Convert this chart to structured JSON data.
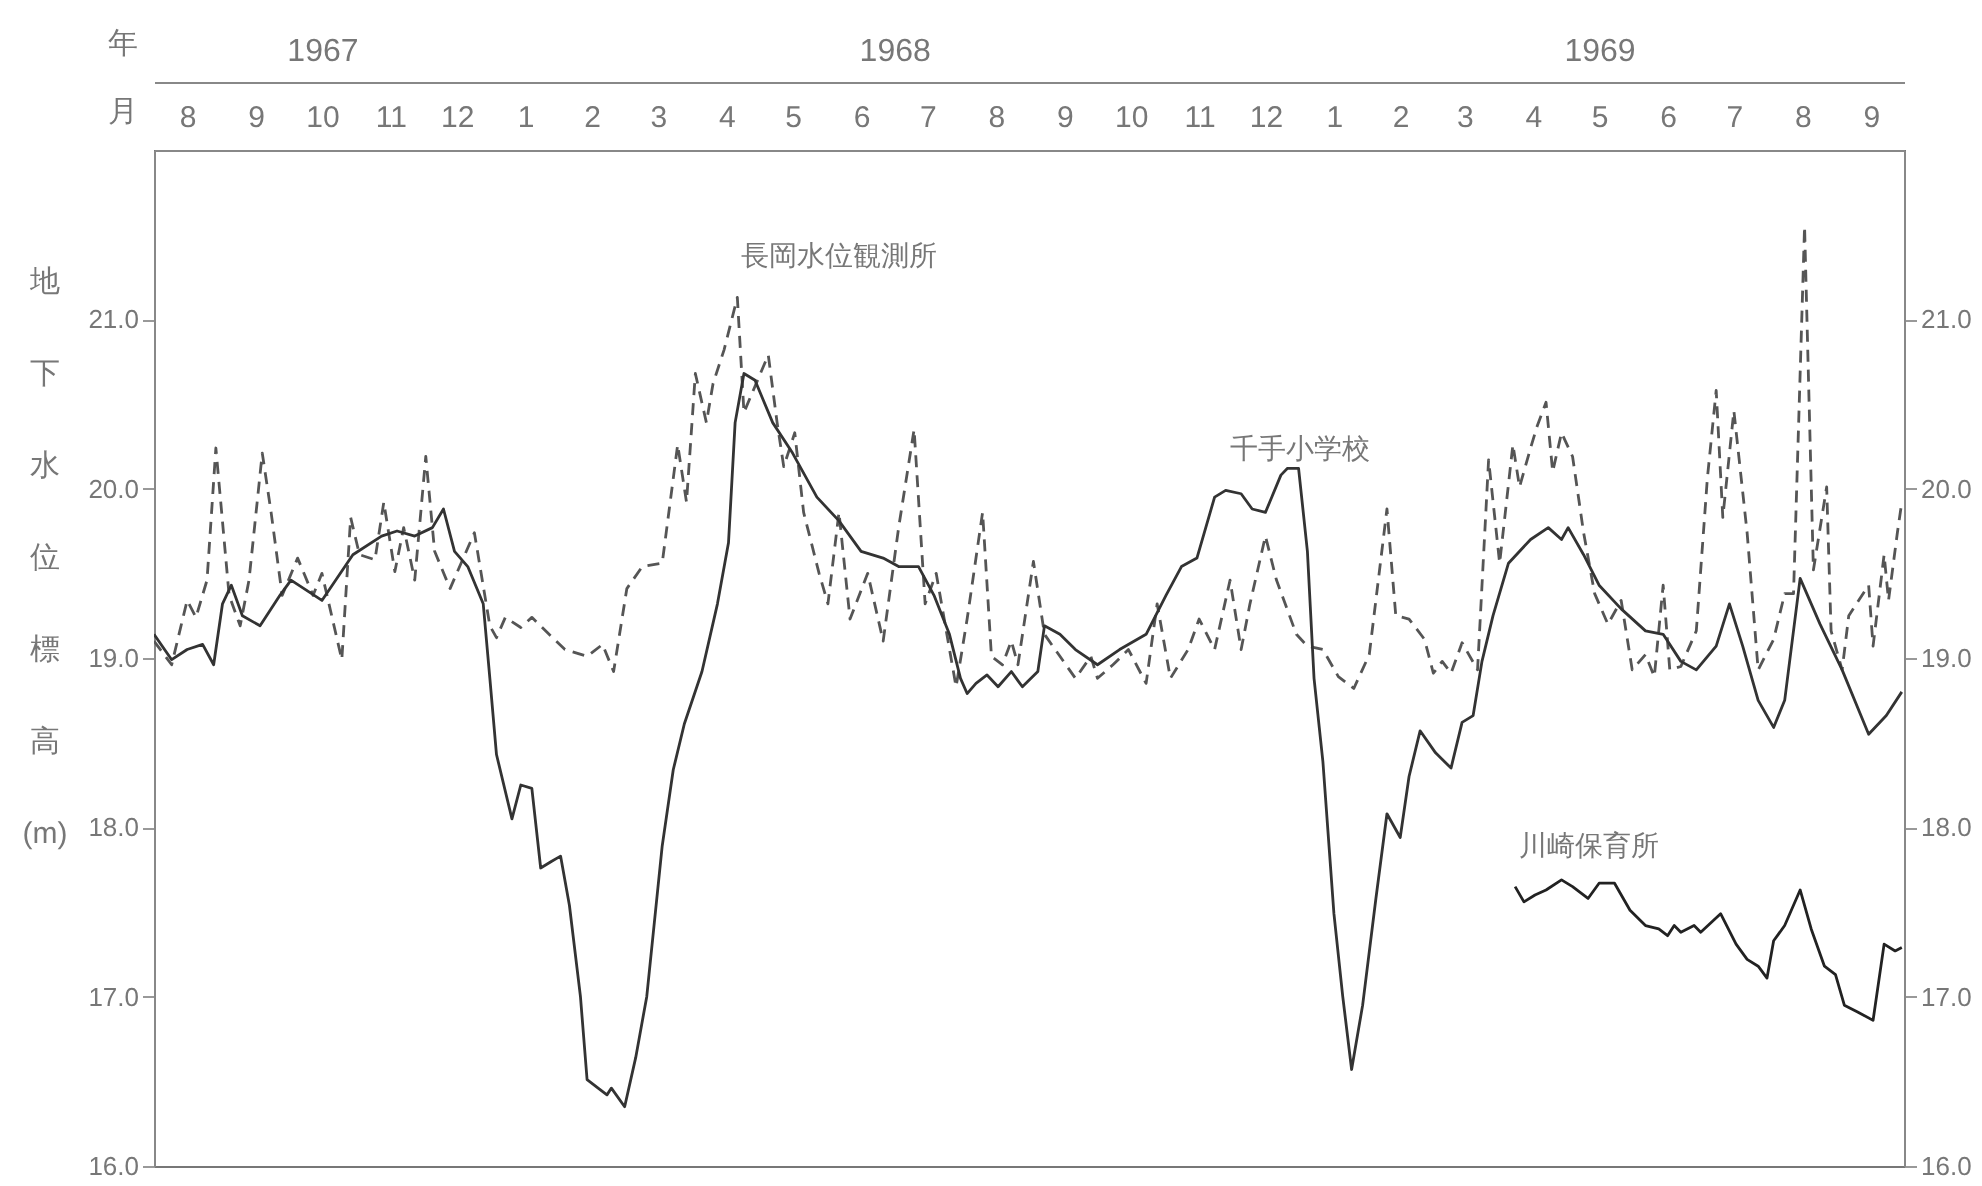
{
  "chart_data": {
    "type": "line",
    "xlabel": "月",
    "x2label": "年",
    "ylabel": "地下水位標高 (m)",
    "xlim": [
      "1967-08-01",
      "1969-10-01"
    ],
    "x2lim": [
      "1967-08-01",
      "1969-10-01"
    ],
    "xticks": [
      {
        "value": "1967-08-16",
        "label": "8"
      },
      {
        "value": "1967-09-16",
        "label": "9"
      },
      {
        "value": "1967-10-16",
        "label": "10"
      },
      {
        "value": "1967-11-16",
        "label": "11"
      },
      {
        "value": "1967-12-16",
        "label": "12"
      },
      {
        "value": "1968-01-16",
        "label": "1"
      },
      {
        "value": "1968-02-15",
        "label": "2"
      },
      {
        "value": "1968-03-16",
        "label": "3"
      },
      {
        "value": "1968-04-16",
        "label": "4"
      },
      {
        "value": "1968-05-16",
        "label": "5"
      },
      {
        "value": "1968-06-16",
        "label": "6"
      },
      {
        "value": "1968-07-16",
        "label": "7"
      },
      {
        "value": "1968-08-16",
        "label": "8"
      },
      {
        "value": "1968-09-16",
        "label": "9"
      },
      {
        "value": "1968-10-16",
        "label": "10"
      },
      {
        "value": "1968-11-16",
        "label": "11"
      },
      {
        "value": "1968-12-16",
        "label": "12"
      },
      {
        "value": "1969-01-16",
        "label": "1"
      },
      {
        "value": "1969-02-15",
        "label": "2"
      },
      {
        "value": "1969-03-16",
        "label": "3"
      },
      {
        "value": "1969-04-16",
        "label": "4"
      },
      {
        "value": "1969-05-16",
        "label": "5"
      },
      {
        "value": "1969-06-16",
        "label": "6"
      },
      {
        "value": "1969-07-16",
        "label": "7"
      },
      {
        "value": "1969-08-16",
        "label": "8"
      },
      {
        "value": "1969-09-16",
        "label": "9"
      }
    ],
    "x2ticks": [
      {
        "value": "1967-10-16",
        "label": "1967"
      },
      {
        "value": "1968-07-01",
        "label": "1968"
      },
      {
        "value": "1969-05-16",
        "label": "1969"
      }
    ],
    "ylim": [
      16,
      22
    ],
    "yticks": [
      {
        "value": 16,
        "label": "16.0"
      },
      {
        "value": 17,
        "label": "17.0"
      },
      {
        "value": 18,
        "label": "18.0"
      },
      {
        "value": 19,
        "label": "19.0"
      },
      {
        "value": 20,
        "label": "20.0"
      },
      {
        "value": 21,
        "label": "21.0"
      }
    ],
    "y2lim": [
      16,
      22
    ],
    "y2ticks": [
      {
        "value": 16,
        "label": "16.0"
      },
      {
        "value": 17,
        "label": "17.0"
      },
      {
        "value": 18,
        "label": "18.0"
      },
      {
        "value": 19,
        "label": "19.0"
      },
      {
        "value": 20,
        "label": "20.0"
      },
      {
        "value": 21,
        "label": "21.0"
      }
    ],
    "annotations": [
      {
        "text": "長岡水位観測所",
        "x": "1968-04-21",
        "y": 21.13
      },
      {
        "text": "千手小学校",
        "x": "1968-11-28",
        "y": 19.99
      },
      {
        "text": "川崎保育所",
        "x": "1969-04-08",
        "y": 17.65
      }
    ],
    "series": [
      {
        "color": "#555555",
        "line_style": "dashed",
        "x": [
          "1967-08-01",
          "1967-08-09",
          "1967-08-16",
          "1967-08-20",
          "1967-08-25",
          "1967-08-29",
          "1967-09-04",
          "1967-09-09",
          "1967-09-13",
          "1967-09-19",
          "1967-09-23",
          "1967-09-28",
          "1967-10-05",
          "1967-10-12",
          "1967-10-16",
          "1967-10-25",
          "1967-10-29",
          "1967-11-02",
          "1967-11-09",
          "1967-11-13",
          "1967-11-18",
          "1967-11-22",
          "1967-11-27",
          "1967-12-02",
          "1967-12-06",
          "1967-12-13",
          "1967-12-24",
          "1967-12-31",
          "1968-01-03",
          "1968-01-07",
          "1968-01-14",
          "1968-01-19",
          "1968-01-26",
          "1968-02-03",
          "1968-02-13",
          "1968-02-20",
          "1968-02-25",
          "1968-03-02",
          "1968-03-09",
          "1968-03-18",
          "1968-03-25",
          "1968-03-29",
          "1968-04-02",
          "1968-04-07",
          "1968-04-10",
          "1968-04-15",
          "1968-04-21",
          "1968-04-24",
          "1968-05-05",
          "1968-05-09",
          "1968-05-12",
          "1968-05-17",
          "1968-05-21",
          "1968-05-28",
          "1968-06-01",
          "1968-06-06",
          "1968-06-11",
          "1968-06-19",
          "1968-06-26",
          "1968-07-03",
          "1968-07-10",
          "1968-07-15",
          "1968-07-20",
          "1968-07-29",
          "1968-08-03",
          "1968-08-10",
          "1968-08-14",
          "1968-08-19",
          "1968-08-23",
          "1968-08-26",
          "1968-09-02",
          "1968-09-07",
          "1968-09-14",
          "1968-09-21",
          "1968-09-28",
          "1968-10-01",
          "1968-10-08",
          "1968-10-15",
          "1968-10-23",
          "1968-10-28",
          "1968-11-03",
          "1968-11-11",
          "1968-11-16",
          "1968-11-23",
          "1968-11-30",
          "1968-12-05",
          "1968-12-09",
          "1968-12-16",
          "1968-12-21",
          "1968-12-30",
          "1969-01-04",
          "1969-01-11",
          "1969-01-18",
          "1969-01-25",
          "1969-02-01",
          "1969-02-09",
          "1969-02-13",
          "1969-02-19",
          "1969-02-26",
          "1969-03-02",
          "1969-03-06",
          "1969-03-10",
          "1969-03-15",
          "1969-03-22",
          "1969-03-27",
          "1969-04-01",
          "1969-04-07",
          "1969-04-10",
          "1969-04-15",
          "1969-04-18",
          "1969-04-22",
          "1969-04-25",
          "1969-04-29",
          "1969-05-04",
          "1969-05-09",
          "1969-05-14",
          "1969-05-20",
          "1969-05-26",
          "1969-05-31",
          "1969-06-06",
          "1969-06-10",
          "1969-06-14",
          "1969-06-17",
          "1969-06-22",
          "1969-06-29",
          "1969-07-04",
          "1969-07-08",
          "1969-07-11",
          "1969-07-16",
          "1969-07-22",
          "1969-07-27",
          "1969-08-03",
          "1969-08-08",
          "1969-08-12",
          "1969-08-17",
          "1969-08-21",
          "1969-08-27",
          "1969-08-29",
          "1969-09-03",
          "1969-09-06",
          "1969-09-15",
          "1969-09-17",
          "1969-09-22",
          "1969-09-24",
          "1969-09-28",
          "1969-09-30"
        ],
        "values": [
          19.1,
          18.96,
          19.34,
          19.24,
          19.46,
          20.24,
          19.37,
          19.19,
          19.46,
          20.21,
          19.86,
          19.37,
          19.59,
          19.37,
          19.5,
          18.99,
          19.83,
          19.61,
          19.58,
          19.92,
          19.51,
          19.77,
          19.46,
          20.19,
          19.63,
          19.41,
          19.74,
          19.19,
          19.12,
          19.24,
          19.18,
          19.24,
          19.15,
          19.05,
          19.01,
          19.08,
          18.92,
          19.41,
          19.54,
          19.56,
          20.26,
          19.92,
          20.68,
          20.39,
          20.62,
          20.82,
          21.13,
          20.45,
          20.79,
          20.39,
          20.13,
          20.33,
          19.86,
          19.5,
          19.32,
          19.86,
          19.23,
          19.5,
          19.1,
          19.77,
          20.35,
          19.32,
          19.5,
          18.83,
          19.23,
          19.86,
          19.01,
          18.96,
          19.1,
          18.96,
          19.57,
          19.14,
          19.01,
          18.88,
          19.01,
          18.88,
          18.96,
          19.05,
          18.85,
          19.32,
          18.88,
          19.05,
          19.23,
          19.05,
          19.46,
          19.05,
          19.32,
          19.72,
          19.46,
          19.14,
          19.07,
          19.05,
          18.89,
          18.82,
          19.02,
          19.88,
          19.25,
          19.23,
          19.11,
          18.91,
          18.98,
          18.91,
          19.09,
          18.93,
          20.17,
          19.56,
          20.26,
          20.01,
          20.24,
          20.37,
          20.51,
          20.1,
          20.33,
          20.19,
          19.74,
          19.38,
          19.2,
          19.34,
          18.93,
          19.02,
          18.89,
          19.43,
          18.93,
          18.95,
          19.16,
          20.06,
          20.58,
          19.83,
          20.46,
          19.74,
          18.93,
          19.11,
          19.38,
          19.38,
          21.55,
          19.52,
          20.01,
          19.16,
          18.93,
          19.25,
          19.43,
          19.07,
          19.61,
          19.34,
          19.74,
          19.92
        ]
      },
      {
        "color": "#333333",
        "line_style": "solid",
        "x": [
          "1967-08-01",
          "1967-08-09",
          "1967-08-16",
          "1967-08-23",
          "1967-08-28",
          "1967-09-01",
          "1967-09-05",
          "1967-09-10",
          "1967-09-18",
          "1967-09-27",
          "1967-10-02",
          "1967-10-16",
          "1967-10-30",
          "1967-11-12",
          "1967-11-19",
          "1967-11-27",
          "1967-12-05",
          "1967-12-10",
          "1967-12-15",
          "1967-12-21",
          "1967-12-28",
          "1967-12-31",
          "1968-01-03",
          "1968-01-10",
          "1968-01-14",
          "1968-01-19",
          "1968-01-23",
          "1968-01-28",
          "1968-02-01",
          "1968-02-05",
          "1968-02-10",
          "1968-02-13",
          "1968-02-18",
          "1968-02-22",
          "1968-02-24",
          "1968-03-01",
          "1968-03-06",
          "1968-03-11",
          "1968-03-18",
          "1968-03-23",
          "1968-03-28",
          "1968-04-05",
          "1968-04-12",
          "1968-04-17",
          "1968-04-20",
          "1968-04-24",
          "1968-04-29",
          "1968-05-07",
          "1968-05-16",
          "1968-05-27",
          "1968-06-06",
          "1968-06-16",
          "1968-06-26",
          "1968-07-03",
          "1968-07-12",
          "1968-07-19",
          "1968-07-26",
          "1968-07-31",
          "1968-08-03",
          "1968-08-07",
          "1968-08-12",
          "1968-08-17",
          "1968-08-23",
          "1968-08-28",
          "1968-09-04",
          "1968-09-07",
          "1968-09-14",
          "1968-09-21",
          "1968-10-01",
          "1968-10-11",
          "1968-10-23",
          "1968-11-01",
          "1968-11-08",
          "1968-11-15",
          "1968-11-23",
          "1968-11-28",
          "1968-12-05",
          "1968-12-10",
          "1968-12-16",
          "1968-12-23",
          "1968-12-26",
          "1968-12-31",
          "1969-01-04",
          "1969-01-07",
          "1969-01-11",
          "1969-01-16",
          "1969-01-20",
          "1969-01-24",
          "1969-01-29",
          "1969-02-04",
          "1969-02-09",
          "1969-02-15",
          "1969-02-19",
          "1969-02-24",
          "1969-03-03",
          "1969-03-10",
          "1969-03-15",
          "1969-03-20",
          "1969-03-24",
          "1969-03-29",
          "1969-04-05",
          "1969-04-15",
          "1969-04-23",
          "1969-04-29",
          "1969-05-02",
          "1969-05-09",
          "1969-05-16",
          "1969-05-26",
          "1969-06-06",
          "1969-06-14",
          "1969-06-22",
          "1969-06-29",
          "1969-07-08",
          "1969-07-14",
          "1969-07-20",
          "1969-07-27",
          "1969-08-03",
          "1969-08-08",
          "1969-08-15",
          "1969-08-24",
          "1969-09-03",
          "1969-09-15",
          "1969-09-23",
          "1969-09-30"
        ],
        "values": [
          19.14,
          18.99,
          19.05,
          19.08,
          18.96,
          19.32,
          19.43,
          19.25,
          19.19,
          19.37,
          19.46,
          19.34,
          19.61,
          19.72,
          19.75,
          19.72,
          19.77,
          19.88,
          19.63,
          19.54,
          19.32,
          18.88,
          18.43,
          18.05,
          18.25,
          18.23,
          17.76,
          17.8,
          17.83,
          17.54,
          17.0,
          16.51,
          16.46,
          16.42,
          16.46,
          16.35,
          16.64,
          17.0,
          17.89,
          18.34,
          18.61,
          18.92,
          19.32,
          19.68,
          20.39,
          20.68,
          20.64,
          20.39,
          20.21,
          19.95,
          19.81,
          19.63,
          19.59,
          19.54,
          19.54,
          19.37,
          19.14,
          18.88,
          18.79,
          18.85,
          18.9,
          18.83,
          18.92,
          18.83,
          18.92,
          19.19,
          19.14,
          19.05,
          18.96,
          19.05,
          19.14,
          19.37,
          19.54,
          19.59,
          19.95,
          19.99,
          19.97,
          19.88,
          19.86,
          20.08,
          20.12,
          20.12,
          19.63,
          18.88,
          18.39,
          17.49,
          17.0,
          16.57,
          16.95,
          17.58,
          18.08,
          17.94,
          18.3,
          18.57,
          18.44,
          18.35,
          18.62,
          18.66,
          18.98,
          19.25,
          19.56,
          19.7,
          19.77,
          19.7,
          19.77,
          19.61,
          19.43,
          19.29,
          19.16,
          19.14,
          18.98,
          18.93,
          19.07,
          19.32,
          19.07,
          18.75,
          18.59,
          18.75,
          19.47,
          19.2,
          18.93,
          18.55,
          18.66,
          18.8
        ]
      },
      {
        "color": "#222222",
        "line_style": "solid",
        "x": [
          "1969-04-08",
          "1969-04-12",
          "1969-04-17",
          "1969-04-22",
          "1969-04-29",
          "1969-05-04",
          "1969-05-11",
          "1969-05-16",
          "1969-05-23",
          "1969-05-30",
          "1969-06-06",
          "1969-06-12",
          "1969-06-16",
          "1969-06-19",
          "1969-06-22",
          "1969-06-28",
          "1969-07-01",
          "1969-07-10",
          "1969-07-17",
          "1969-07-22",
          "1969-07-27",
          "1969-07-31",
          "1969-08-03",
          "1969-08-08",
          "1969-08-15",
          "1969-08-20",
          "1969-08-26",
          "1969-08-31",
          "1969-09-04",
          "1969-09-10",
          "1969-09-17",
          "1969-09-22",
          "1969-09-27",
          "1969-09-30"
        ],
        "values": [
          17.65,
          17.56,
          17.6,
          17.63,
          17.69,
          17.65,
          17.58,
          17.67,
          17.67,
          17.51,
          17.42,
          17.4,
          17.36,
          17.42,
          17.38,
          17.42,
          17.38,
          17.49,
          17.31,
          17.22,
          17.18,
          17.11,
          17.33,
          17.42,
          17.63,
          17.4,
          17.18,
          17.13,
          16.95,
          16.91,
          16.86,
          17.31,
          17.27,
          17.29
        ]
      }
    ]
  }
}
